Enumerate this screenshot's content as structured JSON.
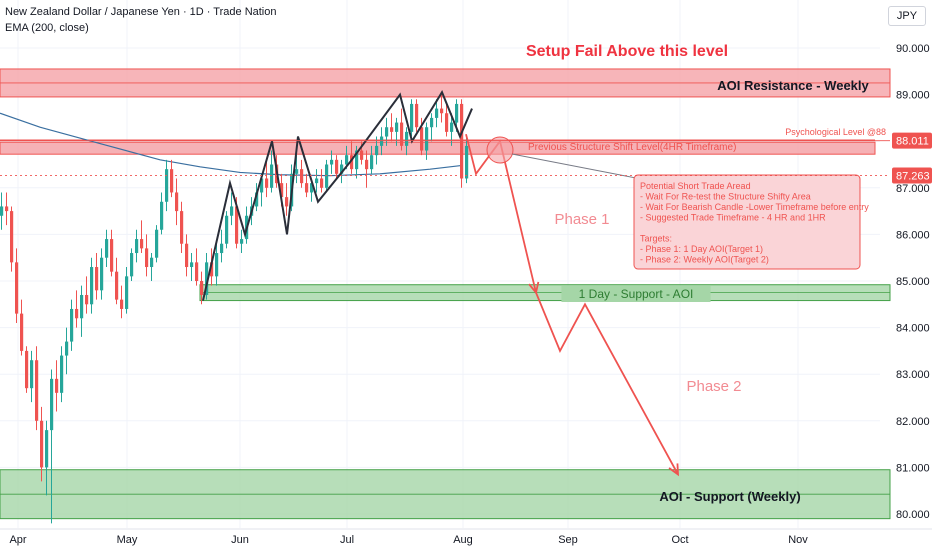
{
  "header": {
    "symbol_line": "New Zealand Dollar / Japanese Yen · 1D · Trade Nation",
    "indicator": "EMA (200, close)",
    "currency": "JPY"
  },
  "colors": {
    "up": "#26a69a",
    "down": "#ef5350",
    "ema": "#2962ff",
    "resistance_fill": "#f5a3a8",
    "support_fill": "#a5d6a7",
    "annotation_red": "#ef3340",
    "phase_text": "#f28b92",
    "support_text": "#4caf50"
  },
  "chart_data": {
    "type": "candlestick",
    "x_ticks": [
      "Apr",
      "May",
      "Jun",
      "Jul",
      "Aug",
      "Sep",
      "Oct",
      "Nov"
    ],
    "y_ticks": [
      "80.000",
      "81.000",
      "82.000",
      "83.000",
      "84.000",
      "85.000",
      "86.000",
      "87.000",
      "88.000",
      "89.000",
      "90.000"
    ],
    "ylim": [
      79.75,
      90.5
    ],
    "price_labels": [
      {
        "text": "88.011",
        "value": 88.011,
        "color": "#ef5350"
      },
      {
        "text": "87.263",
        "value": 87.263,
        "color": "#ef5350"
      }
    ],
    "zones": [
      {
        "name": "AOI Resistance - Weekly",
        "from": 88.95,
        "to": 89.55,
        "kind": "resistance"
      },
      {
        "name": "1 Day - Support - AOI",
        "from": 84.58,
        "to": 84.92,
        "kind": "support"
      },
      {
        "name": "AOI - Support (Weekly)",
        "from": 79.9,
        "to": 80.95,
        "kind": "support"
      }
    ],
    "levels": [
      {
        "name": "Previous Structure Shift Level(4HR Timeframe)",
        "value": 87.85
      },
      {
        "name": "Psychological Level @88",
        "value": 88.02
      }
    ],
    "annotations": {
      "setup_fail": "Setup Fail Above this level",
      "phase1": "Phase 1",
      "phase2": "Phase 2",
      "note_lines": [
        "Potential Short Trade Aread",
        "- Wait For Re-test the Structure Shifty Area",
        "- Wait For Bearish Candle -Lower Timeframe before entry",
        "- Suggested Trade Timeframe - 4 HR and 1HR",
        "",
        "Targets:",
        "- Phase 1: 1 Day AOI(Target 1)",
        "- Phase 2: Weekly AOI(Target 2)"
      ]
    },
    "ema_200": [
      [
        0,
        88.6
      ],
      [
        40,
        88.3
      ],
      [
        100,
        87.95
      ],
      [
        160,
        87.6
      ],
      [
        200,
        87.45
      ],
      [
        240,
        87.33
      ],
      [
        280,
        87.28
      ],
      [
        330,
        87.26
      ],
      [
        380,
        87.3
      ],
      [
        430,
        87.4
      ],
      [
        462,
        87.48
      ]
    ],
    "pattern_path": [
      [
        203,
        84.58
      ],
      [
        230,
        87.1
      ],
      [
        245,
        86.0
      ],
      [
        272,
        88.0
      ],
      [
        287,
        86.0
      ],
      [
        298,
        88.1
      ],
      [
        318,
        86.7
      ],
      [
        350,
        87.55
      ],
      [
        400,
        89.0
      ],
      [
        412,
        88.0
      ],
      [
        442,
        89.05
      ],
      [
        460,
        88.1
      ],
      [
        472,
        88.7
      ]
    ],
    "projection_path": [
      [
        466,
        88.15
      ],
      [
        476,
        87.3
      ],
      [
        500,
        88.0
      ],
      [
        536,
        84.75
      ],
      [
        560,
        83.5
      ],
      [
        585,
        84.5
      ],
      [
        678,
        80.85
      ]
    ],
    "candles": [
      [
        0,
        86.4,
        86.9,
        86.1,
        86.6
      ],
      [
        5,
        86.6,
        86.9,
        86.2,
        86.5
      ],
      [
        10,
        86.5,
        86.6,
        85.2,
        85.4
      ],
      [
        15,
        85.4,
        85.7,
        84.1,
        84.3
      ],
      [
        20,
        84.3,
        84.6,
        83.4,
        83.5
      ],
      [
        25,
        83.5,
        83.6,
        82.6,
        82.7
      ],
      [
        30,
        82.7,
        83.5,
        82.4,
        83.3
      ],
      [
        35,
        83.3,
        83.6,
        81.8,
        82.0
      ],
      [
        40,
        82.0,
        82.3,
        80.7,
        81.0
      ],
      [
        45,
        81.0,
        82.0,
        80.4,
        81.8
      ],
      [
        50,
        81.8,
        83.1,
        79.8,
        82.9
      ],
      [
        55,
        82.9,
        83.3,
        82.2,
        82.6
      ],
      [
        60,
        82.6,
        83.6,
        82.4,
        83.4
      ],
      [
        65,
        83.4,
        84.0,
        83.0,
        83.7
      ],
      [
        70,
        83.7,
        84.6,
        83.5,
        84.4
      ],
      [
        75,
        84.4,
        84.8,
        84.0,
        84.2
      ],
      [
        80,
        84.2,
        84.9,
        83.8,
        84.7
      ],
      [
        85,
        84.7,
        85.1,
        84.3,
        84.5
      ],
      [
        90,
        84.5,
        85.5,
        84.3,
        85.3
      ],
      [
        95,
        85.3,
        85.6,
        84.6,
        84.8
      ],
      [
        100,
        84.8,
        85.7,
        84.6,
        85.5
      ],
      [
        105,
        85.5,
        86.1,
        85.3,
        85.9
      ],
      [
        110,
        85.9,
        86.1,
        85.1,
        85.2
      ],
      [
        115,
        85.2,
        85.5,
        84.5,
        84.6
      ],
      [
        120,
        84.6,
        84.9,
        84.2,
        84.4
      ],
      [
        125,
        84.4,
        85.3,
        84.3,
        85.1
      ],
      [
        130,
        85.1,
        85.7,
        85.0,
        85.6
      ],
      [
        135,
        85.6,
        86.1,
        85.4,
        85.9
      ],
      [
        140,
        85.9,
        86.3,
        85.6,
        85.7
      ],
      [
        145,
        85.7,
        86.0,
        85.1,
        85.3
      ],
      [
        150,
        85.3,
        85.6,
        85.0,
        85.5
      ],
      [
        155,
        85.5,
        86.2,
        85.4,
        86.1
      ],
      [
        160,
        86.1,
        86.9,
        86.0,
        86.7
      ],
      [
        165,
        86.7,
        87.6,
        86.5,
        87.4
      ],
      [
        170,
        87.4,
        87.6,
        86.8,
        86.9
      ],
      [
        175,
        86.9,
        87.2,
        86.2,
        86.5
      ],
      [
        180,
        86.5,
        86.7,
        85.6,
        85.8
      ],
      [
        185,
        85.8,
        86.0,
        85.1,
        85.3
      ],
      [
        190,
        85.3,
        85.6,
        85.0,
        85.4
      ],
      [
        195,
        85.4,
        85.7,
        84.9,
        85.0
      ],
      [
        200,
        85.0,
        85.2,
        84.5,
        84.7
      ],
      [
        205,
        84.7,
        85.6,
        84.6,
        85.4
      ],
      [
        210,
        85.4,
        85.7,
        84.9,
        85.1
      ],
      [
        215,
        85.1,
        85.8,
        84.9,
        85.6
      ],
      [
        220,
        85.6,
        86.1,
        85.4,
        85.8
      ],
      [
        225,
        85.8,
        86.5,
        85.7,
        86.4
      ],
      [
        230,
        86.4,
        86.9,
        86.2,
        86.6
      ],
      [
        235,
        86.6,
        86.8,
        85.7,
        85.8
      ],
      [
        240,
        85.8,
        86.1,
        85.6,
        85.9
      ],
      [
        245,
        85.9,
        86.6,
        85.8,
        86.4
      ],
      [
        250,
        86.4,
        86.8,
        86.2,
        86.6
      ],
      [
        255,
        86.6,
        87.1,
        86.5,
        86.9
      ],
      [
        260,
        86.9,
        87.3,
        86.6,
        87.2
      ],
      [
        265,
        87.2,
        87.6,
        86.8,
        87.0
      ],
      [
        270,
        87.0,
        87.8,
        86.9,
        87.5
      ],
      [
        275,
        87.5,
        87.7,
        87.0,
        87.1
      ],
      [
        280,
        87.1,
        87.3,
        86.6,
        86.8
      ],
      [
        285,
        86.8,
        87.1,
        86.4,
        86.6
      ],
      [
        290,
        86.6,
        87.5,
        86.5,
        87.3
      ],
      [
        295,
        87.3,
        87.7,
        87.1,
        87.4
      ],
      [
        300,
        87.4,
        87.6,
        87.0,
        87.1
      ],
      [
        305,
        87.1,
        87.3,
        86.8,
        86.9
      ],
      [
        310,
        86.9,
        87.2,
        86.7,
        87.1
      ],
      [
        315,
        87.1,
        87.4,
        86.9,
        87.2
      ],
      [
        320,
        87.2,
        87.4,
        86.9,
        87.0
      ],
      [
        325,
        87.0,
        87.6,
        86.9,
        87.5
      ],
      [
        330,
        87.5,
        87.8,
        87.3,
        87.6
      ],
      [
        335,
        87.6,
        87.7,
        87.2,
        87.3
      ],
      [
        340,
        87.3,
        87.6,
        87.1,
        87.5
      ],
      [
        345,
        87.5,
        87.9,
        87.4,
        87.7
      ],
      [
        350,
        87.7,
        88.0,
        87.3,
        87.4
      ],
      [
        355,
        87.4,
        87.9,
        87.2,
        87.8
      ],
      [
        360,
        87.8,
        88.0,
        87.5,
        87.6
      ],
      [
        365,
        87.6,
        87.8,
        87.0,
        87.4
      ],
      [
        370,
        87.4,
        87.9,
        87.3,
        87.7
      ],
      [
        375,
        87.7,
        88.1,
        87.5,
        87.9
      ],
      [
        380,
        87.9,
        88.3,
        87.7,
        88.1
      ],
      [
        385,
        88.1,
        88.5,
        87.9,
        88.3
      ],
      [
        390,
        88.3,
        88.6,
        88.0,
        88.2
      ],
      [
        395,
        88.2,
        88.5,
        87.9,
        88.4
      ],
      [
        400,
        88.4,
        88.7,
        87.8,
        87.9
      ],
      [
        405,
        87.9,
        88.3,
        87.7,
        88.2
      ],
      [
        410,
        88.2,
        88.9,
        88.1,
        88.8
      ],
      [
        415,
        88.8,
        88.9,
        88.2,
        88.3
      ],
      [
        420,
        88.3,
        88.5,
        87.7,
        87.8
      ],
      [
        425,
        87.8,
        88.4,
        87.6,
        88.3
      ],
      [
        430,
        88.3,
        88.6,
        88.0,
        88.5
      ],
      [
        435,
        88.5,
        88.9,
        88.3,
        88.7
      ],
      [
        440,
        88.7,
        89.0,
        88.4,
        88.6
      ],
      [
        445,
        88.6,
        88.8,
        88.1,
        88.2
      ],
      [
        450,
        88.2,
        88.6,
        87.9,
        88.4
      ],
      [
        455,
        88.4,
        88.9,
        88.2,
        88.8
      ],
      [
        460,
        88.8,
        88.9,
        87.0,
        87.2
      ],
      [
        465,
        87.2,
        88.1,
        87.1,
        87.9
      ]
    ]
  }
}
